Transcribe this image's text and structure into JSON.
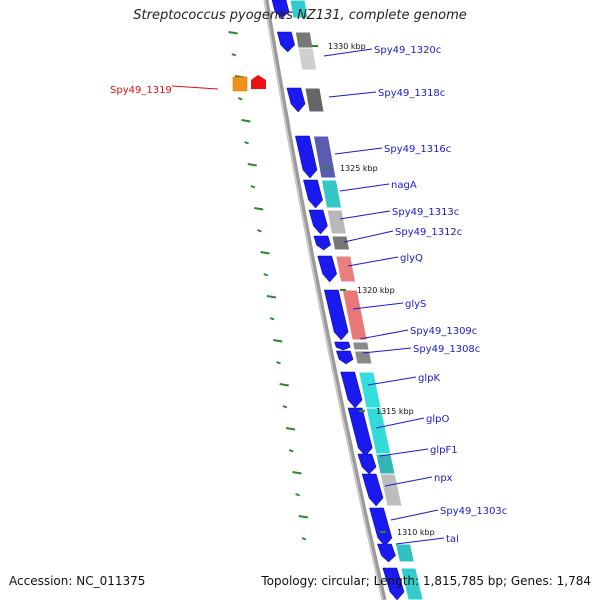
{
  "title": "Streptococcus pyogenes NZ131, complete genome",
  "footer": {
    "accession": "Accession: NC_011375",
    "summary": "Topology: circular; Length: 1,815,785 bp; Genes: 1,784"
  },
  "colors": {
    "backbone": "#9a9a9a",
    "cds": "#1a1aee",
    "label_default": "#1a1acc",
    "label_highlight": "#dd1111",
    "tick": "#2a8a2a"
  },
  "position_labels": [
    "1330 kbp",
    "1325 kbp",
    "1320 kbp",
    "1315 kbp",
    "1310 kbp"
  ],
  "genes": [
    {
      "label": "Spy49_1320c",
      "color": "#1a1acc"
    },
    {
      "label": "Spy49_1319",
      "color": "#dd1111"
    },
    {
      "label": "Spy49_1318c",
      "color": "#1a1acc"
    },
    {
      "label": "Spy49_1316c",
      "color": "#1a1acc"
    },
    {
      "label": "nagA",
      "color": "#1a1acc"
    },
    {
      "label": "Spy49_1313c",
      "color": "#1a1acc"
    },
    {
      "label": "Spy49_1312c",
      "color": "#1a1acc"
    },
    {
      "label": "glyQ",
      "color": "#1a1acc"
    },
    {
      "label": "glyS",
      "color": "#1a1acc"
    },
    {
      "label": "Spy49_1309c",
      "color": "#1a1acc"
    },
    {
      "label": "Spy49_1308c",
      "color": "#1a1acc"
    },
    {
      "label": "glpK",
      "color": "#1a1acc"
    },
    {
      "label": "glpO",
      "color": "#1a1acc"
    },
    {
      "label": "glpF1",
      "color": "#1a1acc"
    },
    {
      "label": "npx",
      "color": "#1a1acc"
    },
    {
      "label": "Spy49_1303c",
      "color": "#1a1acc"
    },
    {
      "label": "tal",
      "color": "#1a1acc"
    }
  ]
}
